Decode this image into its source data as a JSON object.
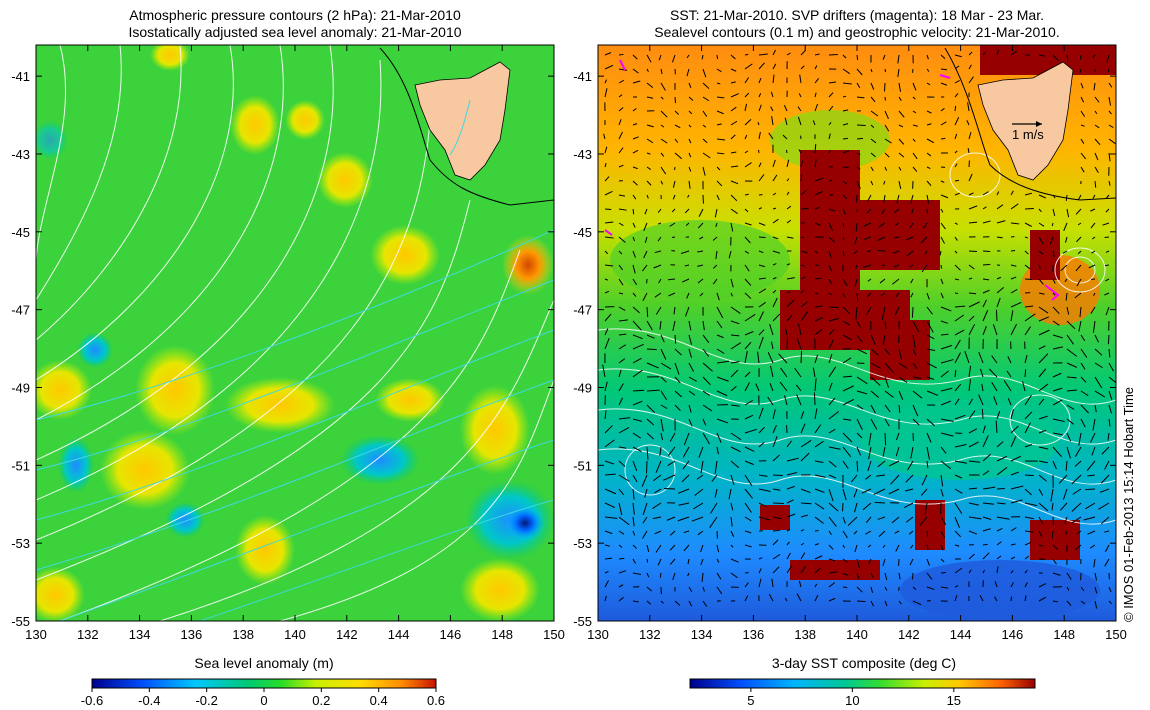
{
  "left_panel": {
    "title_line1": "Atmospheric pressure contours (2 hPa): 21-Mar-2010",
    "title_line2": "Isostatically adjusted sea level anomaly: 21-Mar-2010",
    "y_ticks": [
      "-41",
      "-43",
      "-45",
      "-47",
      "-49",
      "-51",
      "-53",
      "-55"
    ],
    "x_ticks": [
      "130",
      "132",
      "134",
      "136",
      "138",
      "140",
      "142",
      "144",
      "146",
      "148",
      "150"
    ],
    "colorbar_label": "Sea level anomaly (m)",
    "colorbar_ticks": [
      "-0.6",
      "-0.4",
      "-0.2",
      "0",
      "0.2",
      "0.4",
      "0.6"
    ]
  },
  "right_panel": {
    "title_line1": "SST: 21-Mar-2010. SVP drifters (magenta): 18 Mar - 23 Mar.",
    "title_line2": "Sealevel contours (0.1 m) and geostrophic velocity: 21-Mar-2010.",
    "y_ticks": [
      "-41",
      "-43",
      "-45",
      "-47",
      "-49",
      "-51",
      "-53",
      "-55"
    ],
    "x_ticks": [
      "130",
      "132",
      "134",
      "136",
      "138",
      "140",
      "142",
      "144",
      "146",
      "148",
      "150"
    ],
    "scale_label": "1 m/s",
    "colorbar_label": "3-day SST composite (deg C)",
    "colorbar_ticks": [
      "5",
      "10",
      "15"
    ]
  },
  "credit": "© IMOS 01-Feb-2013 15:14 Hobart Time",
  "colors": {
    "land": "#f8c8a0",
    "sla_scale": [
      "#00008c",
      "#0050ff",
      "#00c8ff",
      "#00c878",
      "#28dc28",
      "#c8f000",
      "#ffdc00",
      "#ff8c00",
      "#c81400"
    ],
    "sst_scale": [
      "#00008c",
      "#0050ff",
      "#00b4ff",
      "#00c896",
      "#32dc32",
      "#c8f000",
      "#ffc800",
      "#ff6400",
      "#960000"
    ],
    "drifter": "#ff00ff"
  }
}
